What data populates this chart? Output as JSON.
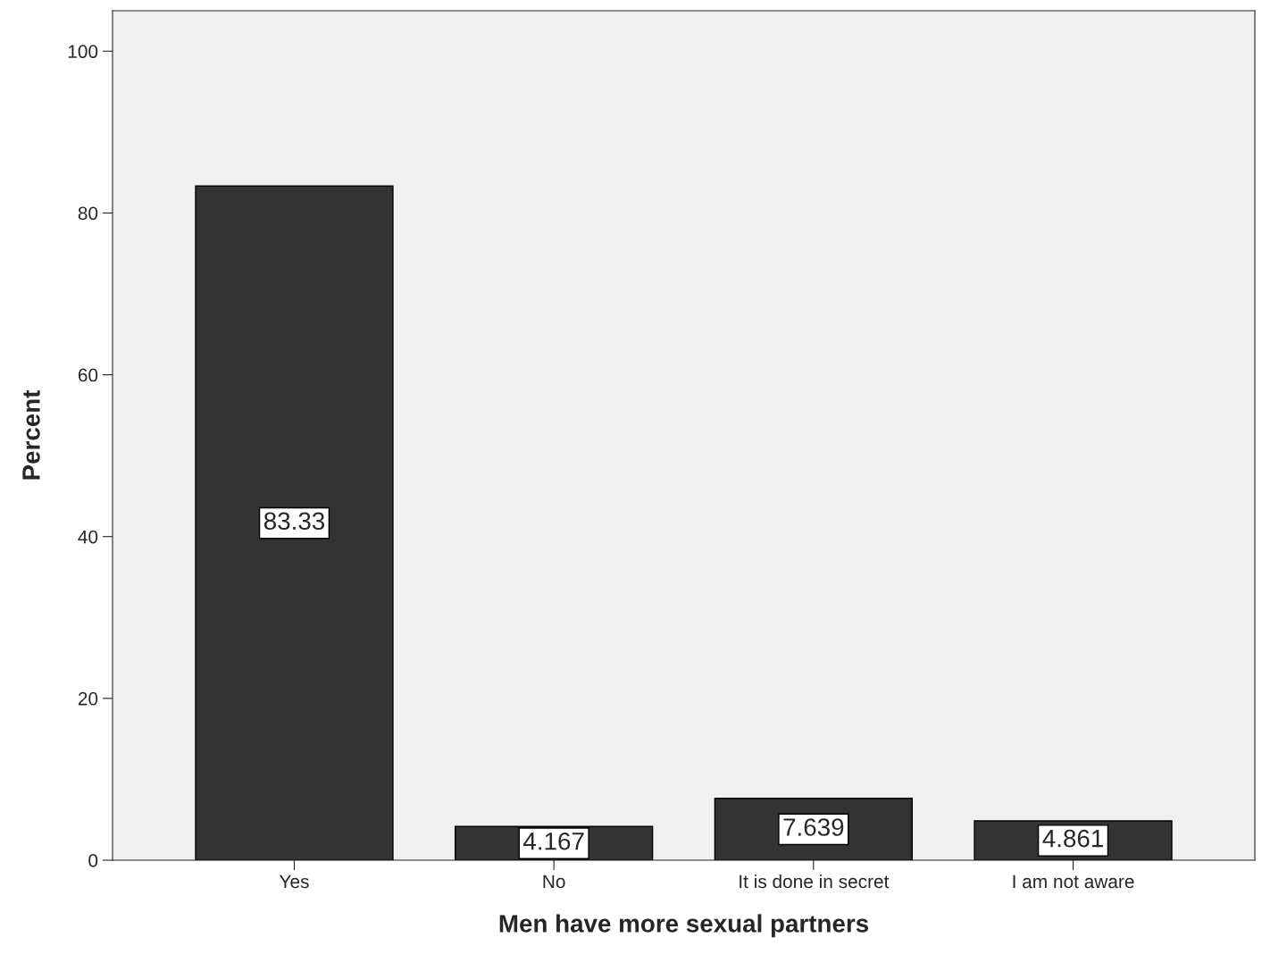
{
  "chart_data": {
    "type": "bar",
    "xlabel": "Men have more sexual partners",
    "ylabel": "Percent",
    "categories": [
      "Yes",
      "No",
      "It is done in secret",
      "I am not aware"
    ],
    "values": [
      83.33,
      4.167,
      7.639,
      4.861
    ],
    "color": "#333333",
    "ylim": [
      0,
      105
    ],
    "yticks": [
      0,
      20,
      40,
      60,
      80,
      100
    ],
    "grid": false,
    "data_labels": true
  }
}
